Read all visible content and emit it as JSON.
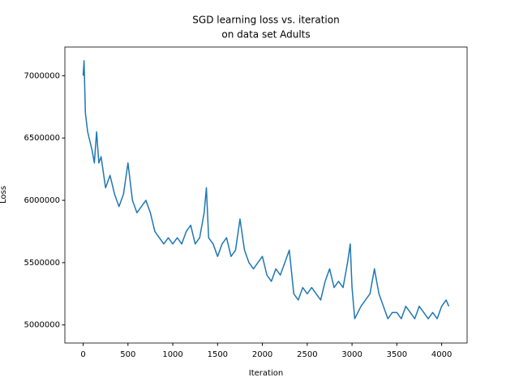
{
  "chart_data": {
    "type": "line",
    "title": "SGD learning loss vs. iteration",
    "subtitle": "on data set Adults",
    "x_label": "Iteration",
    "y_label": "Loss",
    "x": [
      0,
      10,
      25,
      50,
      100,
      125,
      150,
      175,
      200,
      250,
      300,
      350,
      400,
      450,
      500,
      550,
      600,
      650,
      700,
      750,
      800,
      850,
      900,
      950,
      1000,
      1050,
      1100,
      1150,
      1200,
      1250,
      1300,
      1350,
      1375,
      1400,
      1450,
      1500,
      1550,
      1600,
      1650,
      1700,
      1750,
      1800,
      1850,
      1900,
      1950,
      2000,
      2050,
      2100,
      2150,
      2200,
      2250,
      2300,
      2350,
      2400,
      2450,
      2500,
      2550,
      2600,
      2650,
      2700,
      2750,
      2800,
      2850,
      2900,
      2950,
      2980,
      3000,
      3030,
      3100,
      3150,
      3200,
      3250,
      3300,
      3350,
      3400,
      3450,
      3500,
      3550,
      3600,
      3650,
      3700,
      3750,
      3800,
      3850,
      3900,
      3950,
      4000,
      4050,
      4080
    ],
    "series": [
      {
        "name": "Loss",
        "color": "#1f77b4",
        "values": [
          7000000,
          7120000,
          6700000,
          6550000,
          6400000,
          6300000,
          6550000,
          6300000,
          6350000,
          6100000,
          6200000,
          6050000,
          5950000,
          6050000,
          6300000,
          6000000,
          5900000,
          5950000,
          6000000,
          5900000,
          5750000,
          5700000,
          5650000,
          5700000,
          5650000,
          5700000,
          5650000,
          5750000,
          5800000,
          5650000,
          5700000,
          5900000,
          6100000,
          5700000,
          5650000,
          5550000,
          5650000,
          5700000,
          5550000,
          5600000,
          5850000,
          5600000,
          5500000,
          5450000,
          5500000,
          5550000,
          5400000,
          5350000,
          5450000,
          5400000,
          5500000,
          5600000,
          5250000,
          5200000,
          5300000,
          5250000,
          5300000,
          5250000,
          5200000,
          5350000,
          5450000,
          5300000,
          5350000,
          5300000,
          5500000,
          5650000,
          5300000,
          5050000,
          5150000,
          5200000,
          5250000,
          5450000,
          5250000,
          5150000,
          5050000,
          5100000,
          5100000,
          5050000,
          5150000,
          5100000,
          5050000,
          5150000,
          5100000,
          5050000,
          5100000,
          5050000,
          5150000,
          5200000,
          5150000
        ]
      }
    ],
    "xlim": [
      -204,
      4284
    ],
    "ylim": [
      4855000,
      7230000
    ],
    "xticks": [
      0,
      500,
      1000,
      1500,
      2000,
      2500,
      3000,
      3500,
      4000
    ],
    "yticks": [
      5000000,
      5500000,
      6000000,
      6500000,
      7000000
    ],
    "grid": false
  }
}
